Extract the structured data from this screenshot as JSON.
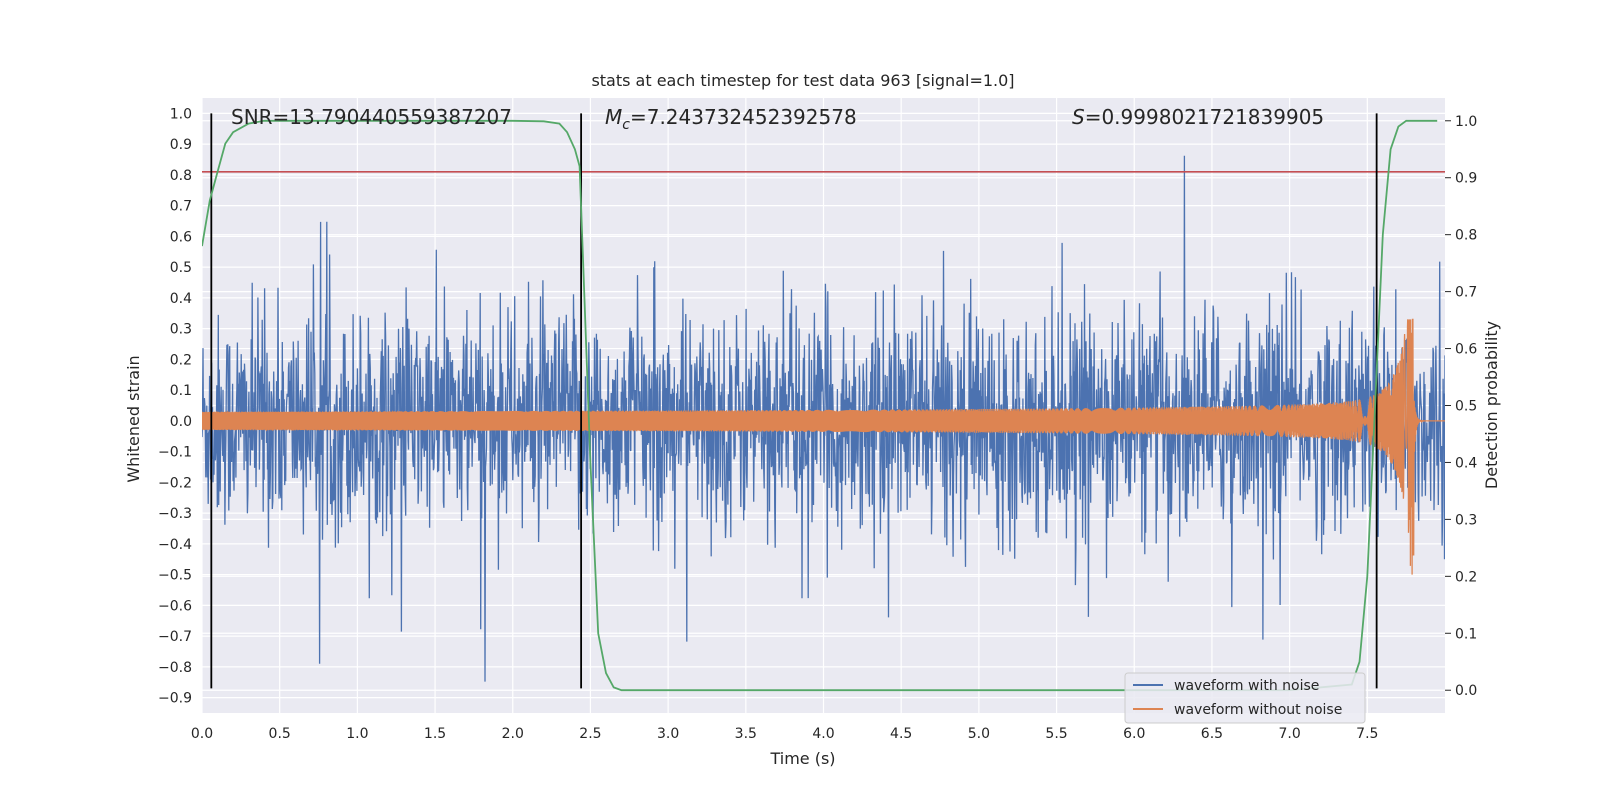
{
  "chart_data": {
    "type": "line",
    "title": "stats at each timestep for test data 963 [signal=1.0]",
    "xlabel": "Time (s)",
    "ylabel_left": "Whitened strain",
    "ylabel_right": "Detection probability",
    "xlim": [
      0.0,
      8.0
    ],
    "ylim_left": [
      -0.95,
      1.05
    ],
    "ylim_right": [
      -0.04,
      1.04
    ],
    "x_ticks": [
      "0.0",
      "0.5",
      "1.0",
      "1.5",
      "2.0",
      "2.5",
      "3.0",
      "3.5",
      "4.0",
      "4.5",
      "5.0",
      "5.5",
      "6.0",
      "6.5",
      "7.0",
      "7.5"
    ],
    "y_ticks_left": [
      "-0.9",
      "-0.8",
      "-0.7",
      "-0.6",
      "-0.5",
      "-0.4",
      "-0.3",
      "-0.2",
      "-0.1",
      "0.0",
      "0.1",
      "0.2",
      "0.3",
      "0.4",
      "0.5",
      "0.6",
      "0.7",
      "0.8",
      "0.9",
      "1.0"
    ],
    "y_ticks_right": [
      "0.0",
      "0.1",
      "0.2",
      "0.3",
      "0.4",
      "0.5",
      "0.6",
      "0.7",
      "0.8",
      "0.9",
      "1.0"
    ],
    "grid": true,
    "legend_placement": "lower-right",
    "annotations": {
      "snr": "SNR=13.790440559387207",
      "mc_symbol": "M",
      "mc_sub": "c",
      "mc_value": "=7.243732452392578",
      "s_symbol": "S",
      "s_value": "=0.9998021721839905"
    },
    "threshold": 0.81,
    "vlines": [
      0.06,
      2.44,
      7.56
    ],
    "series": [
      {
        "name": "waveform with noise",
        "color": "#4c72b0",
        "axis": "left",
        "amplitude_range": [
          -0.87,
          0.93
        ],
        "typical_abs_peak": 0.45
      },
      {
        "name": "waveform without noise",
        "color": "#dd8452",
        "axis": "left",
        "chirp_start_amp": 0.03,
        "peak_time": 7.8,
        "peak_max": 0.33,
        "peak_min": -0.5
      },
      {
        "name": "",
        "color": "#55a868",
        "axis": "right",
        "x": [
          0.0,
          0.05,
          0.1,
          0.15,
          0.2,
          0.3,
          0.4,
          0.6,
          1.0,
          2.0,
          2.2,
          2.3,
          2.35,
          2.4,
          2.43,
          2.46,
          2.5,
          2.55,
          2.6,
          2.65,
          2.7,
          3.0,
          5.0,
          7.0,
          7.4,
          7.45,
          7.5,
          7.55,
          7.6,
          7.65,
          7.7,
          7.75,
          7.8,
          7.85,
          7.9,
          7.95
        ],
        "y": [
          0.78,
          0.86,
          0.91,
          0.96,
          0.98,
          0.995,
          1.0,
          1.0,
          1.0,
          1.0,
          0.999,
          0.995,
          0.98,
          0.95,
          0.92,
          0.7,
          0.4,
          0.1,
          0.03,
          0.005,
          0.0,
          0.0,
          0.0,
          0.0,
          0.01,
          0.05,
          0.2,
          0.5,
          0.8,
          0.95,
          0.99,
          1.0,
          1.0,
          1.0,
          1.0,
          1.0
        ]
      }
    ],
    "threshold_color": "#c44e52",
    "vline_color": "#000000"
  }
}
